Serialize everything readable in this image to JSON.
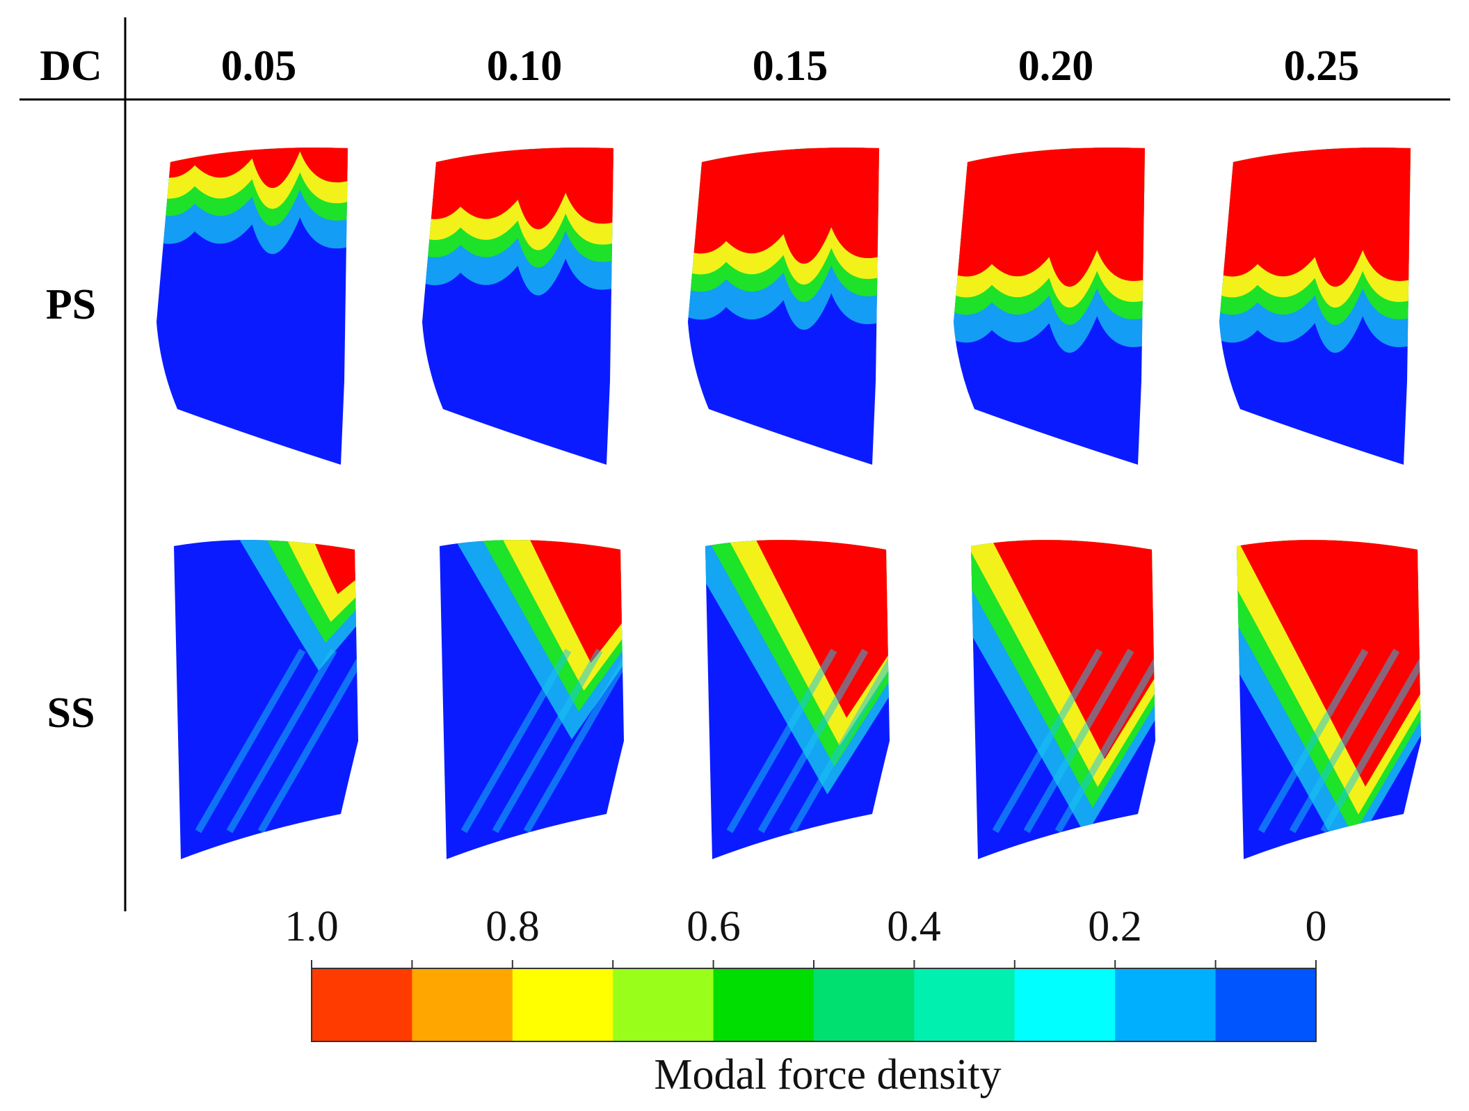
{
  "table": {
    "corner_label": "DC",
    "columns": [
      "0.05",
      "0.10",
      "0.15",
      "0.20",
      "0.25"
    ],
    "rows": [
      "PS",
      "SS"
    ]
  },
  "colorbar": {
    "label": "Modal force density",
    "ticks": [
      "1.0",
      "0.8",
      "0.6",
      "0.4",
      "0.2",
      "0"
    ],
    "colors": [
      "#ff3b00",
      "#ffa600",
      "#ffff00",
      "#99ff1a",
      "#00dd00",
      "#00e070",
      "#00f0b0",
      "#00ffff",
      "#00b0ff",
      "#0055ff"
    ]
  },
  "field_colors": {
    "blue": "#0a1cff",
    "cyan": "#17c8f0",
    "green": "#1ee61e",
    "yellow": "#f2f21a",
    "red": "#ff0000"
  },
  "ps_red_level": [
    0.12,
    0.3,
    0.45,
    0.55,
    0.55
  ],
  "ss_red_level": [
    0.2,
    0.45,
    0.65,
    0.8,
    0.9
  ]
}
